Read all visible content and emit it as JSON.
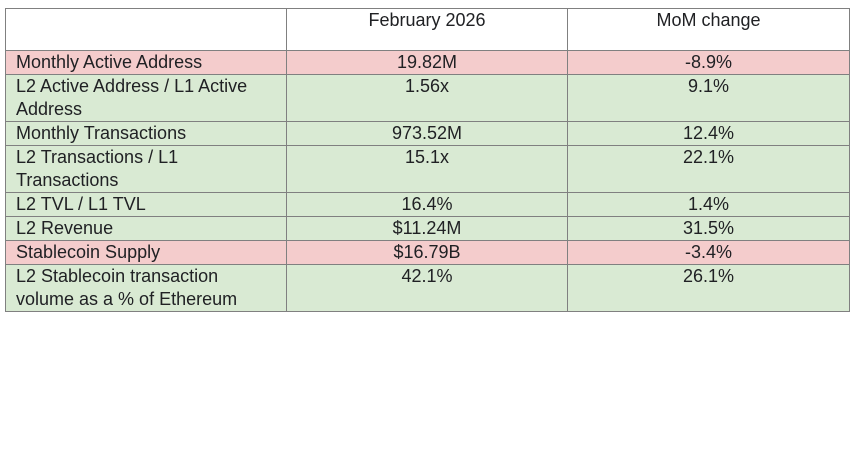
{
  "header": {
    "col_metric": "",
    "col_period": "February 2026",
    "col_change": "MoM change"
  },
  "colors": {
    "negative_row": "#f4cccc",
    "positive_row": "#d9ead3",
    "border": "#808080"
  },
  "rows": [
    {
      "metric": "Monthly Active Address",
      "value": "19.82M",
      "change": "-8.9%",
      "trend": "negative"
    },
    {
      "metric": "L2 Active Address / L1 Active Address",
      "value": "1.56x",
      "change": "9.1%",
      "trend": "positive"
    },
    {
      "metric": "Monthly Transactions",
      "value": "973.52M",
      "change": "12.4%",
      "trend": "positive"
    },
    {
      "metric": "L2 Transactions / L1 Transactions",
      "value": "15.1x",
      "change": "22.1%",
      "trend": "positive"
    },
    {
      "metric": "L2 TVL / L1 TVL",
      "value": "16.4%",
      "change": "1.4%",
      "trend": "positive"
    },
    {
      "metric": "L2 Revenue",
      "value": "$11.24M",
      "change": "31.5%",
      "trend": "positive"
    },
    {
      "metric": "Stablecoin Supply",
      "value": "$16.79B",
      "change": "-3.4%",
      "trend": "negative"
    },
    {
      "metric": "L2 Stablecoin transaction volume as a % of Ethereum",
      "value": "42.1%",
      "change": "26.1%",
      "trend": "positive"
    }
  ]
}
